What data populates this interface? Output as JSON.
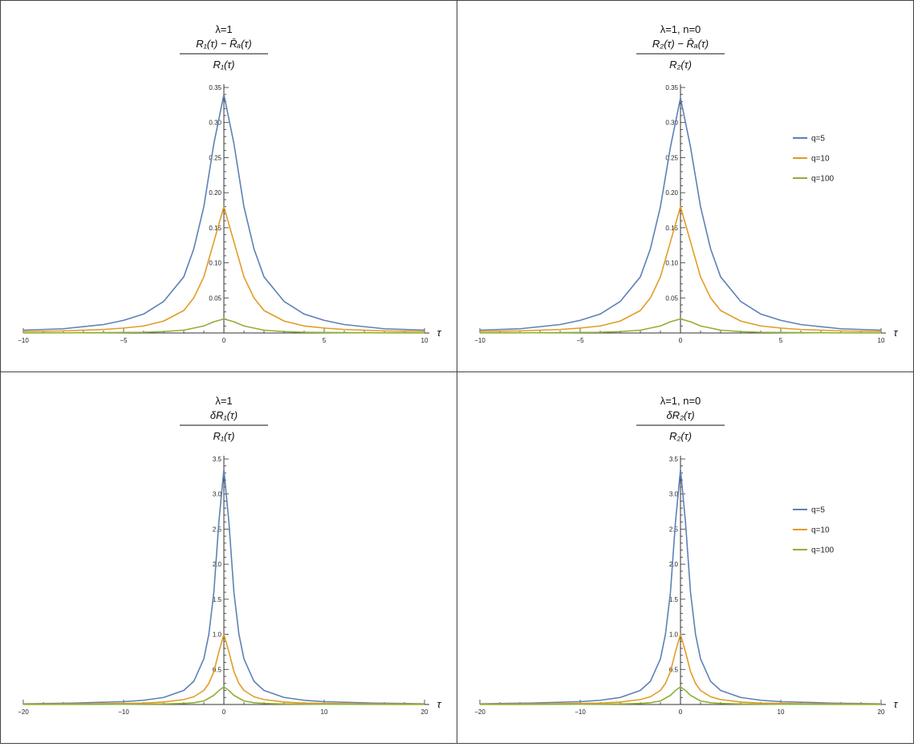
{
  "colors": {
    "q5": "#5E81B5",
    "q10": "#E19C24",
    "q100": "#8FB032",
    "frame": "#444444",
    "axis": "#333333"
  },
  "legend": [
    "q=5",
    "q=10",
    "q=100"
  ],
  "chart_data": [
    {
      "type": "line",
      "title_line1": "λ=1",
      "numerator": "R₁(τ) − R̄ₐ(τ)",
      "denominator": "R₁(τ)",
      "xlabel": "τ",
      "xlim": [
        -10,
        10
      ],
      "ylim": [
        0,
        0.35
      ],
      "xticks": [
        "-10",
        "-5",
        "0",
        "5",
        "10"
      ],
      "yticks": [
        "0.05",
        "0.10",
        "0.15",
        "0.20",
        "0.25",
        "0.30",
        "0.35"
      ],
      "series": [
        {
          "name": "q=5",
          "x": [
            -10,
            -8,
            -6,
            -5,
            -4,
            -3,
            -2,
            -1.5,
            -1,
            -0.5,
            0,
            0.5,
            1,
            1.5,
            2,
            3,
            4,
            5,
            6,
            8,
            10
          ],
          "values": [
            0.004,
            0.006,
            0.012,
            0.018,
            0.027,
            0.045,
            0.08,
            0.12,
            0.18,
            0.27,
            0.34,
            0.27,
            0.18,
            0.12,
            0.08,
            0.045,
            0.027,
            0.018,
            0.012,
            0.006,
            0.004
          ]
        },
        {
          "name": "q=10",
          "x": [
            -10,
            -8,
            -6,
            -5,
            -4,
            -3,
            -2,
            -1.5,
            -1,
            -0.5,
            0,
            0.5,
            1,
            1.5,
            2,
            3,
            4,
            5,
            6,
            8,
            10
          ],
          "values": [
            0.002,
            0.003,
            0.005,
            0.007,
            0.01,
            0.017,
            0.032,
            0.05,
            0.08,
            0.13,
            0.18,
            0.13,
            0.08,
            0.05,
            0.032,
            0.017,
            0.01,
            0.007,
            0.005,
            0.003,
            0.002
          ]
        },
        {
          "name": "q=100",
          "x": [
            -10,
            -6,
            -4,
            -3,
            -2,
            -1,
            -0.5,
            0,
            0.5,
            1,
            2,
            3,
            4,
            6,
            10
          ],
          "values": [
            0.0,
            0.0005,
            0.001,
            0.002,
            0.004,
            0.01,
            0.016,
            0.02,
            0.016,
            0.01,
            0.004,
            0.002,
            0.001,
            0.0005,
            0.0
          ]
        }
      ]
    },
    {
      "type": "line",
      "title_line1": "λ=1, n=0",
      "numerator": "R₂(τ) − R̄ₐ(τ)",
      "denominator": "R₂(τ)",
      "xlabel": "τ",
      "xlim": [
        -10,
        10
      ],
      "ylim": [
        0,
        0.35
      ],
      "xticks": [
        "-10",
        "-5",
        "0",
        "5",
        "10"
      ],
      "yticks": [
        "0.05",
        "0.10",
        "0.15",
        "0.20",
        "0.25",
        "0.30",
        "0.35"
      ],
      "legend": "right",
      "series": [
        {
          "name": "q=5",
          "x": [
            -10,
            -8,
            -6,
            -5,
            -4,
            -3,
            -2,
            -1.5,
            -1,
            -0.5,
            0,
            0.5,
            1,
            1.5,
            2,
            3,
            4,
            5,
            6,
            8,
            10
          ],
          "values": [
            0.004,
            0.006,
            0.012,
            0.018,
            0.027,
            0.045,
            0.08,
            0.12,
            0.18,
            0.265,
            0.335,
            0.265,
            0.18,
            0.12,
            0.08,
            0.045,
            0.027,
            0.018,
            0.012,
            0.006,
            0.004
          ]
        },
        {
          "name": "q=10",
          "x": [
            -10,
            -8,
            -6,
            -5,
            -4,
            -3,
            -2,
            -1.5,
            -1,
            -0.5,
            0,
            0.5,
            1,
            1.5,
            2,
            3,
            4,
            5,
            6,
            8,
            10
          ],
          "values": [
            0.002,
            0.003,
            0.005,
            0.007,
            0.01,
            0.017,
            0.032,
            0.05,
            0.08,
            0.13,
            0.18,
            0.13,
            0.08,
            0.05,
            0.032,
            0.017,
            0.01,
            0.007,
            0.005,
            0.003,
            0.002
          ]
        },
        {
          "name": "q=100",
          "x": [
            -10,
            -6,
            -4,
            -3,
            -2,
            -1,
            -0.5,
            0,
            0.5,
            1,
            2,
            3,
            4,
            6,
            10
          ],
          "values": [
            0.0,
            0.0005,
            0.001,
            0.002,
            0.004,
            0.01,
            0.016,
            0.02,
            0.016,
            0.01,
            0.004,
            0.002,
            0.001,
            0.0005,
            0.0
          ]
        }
      ]
    },
    {
      "type": "line",
      "title_line1": "λ=1",
      "numerator": "δR₁(τ)",
      "denominator": "R₁(τ)",
      "xlabel": "τ",
      "xlim": [
        -20,
        20
      ],
      "ylim": [
        0,
        3.5
      ],
      "xticks": [
        "-20",
        "-10",
        "0",
        "10",
        "20"
      ],
      "yticks": [
        "0.5",
        "1.0",
        "1.5",
        "2.0",
        "2.5",
        "3.0",
        "3.5"
      ],
      "series": [
        {
          "name": "q=5",
          "x": [
            -20,
            -15,
            -10,
            -8,
            -6,
            -4,
            -3,
            -2,
            -1.5,
            -1,
            -0.5,
            0,
            0.5,
            1,
            1.5,
            2,
            3,
            4,
            6,
            8,
            10,
            15,
            20
          ],
          "values": [
            0.01,
            0.02,
            0.04,
            0.06,
            0.1,
            0.2,
            0.33,
            0.65,
            1.0,
            1.6,
            2.6,
            3.35,
            2.6,
            1.6,
            1.0,
            0.65,
            0.33,
            0.2,
            0.1,
            0.06,
            0.04,
            0.02,
            0.01
          ]
        },
        {
          "name": "q=10",
          "x": [
            -20,
            -15,
            -10,
            -8,
            -6,
            -4,
            -3,
            -2,
            -1.5,
            -1,
            -0.5,
            0,
            0.5,
            1,
            1.5,
            2,
            3,
            4,
            6,
            8,
            10,
            15,
            20
          ],
          "values": [
            0.005,
            0.008,
            0.015,
            0.02,
            0.035,
            0.07,
            0.11,
            0.2,
            0.3,
            0.47,
            0.75,
            1.0,
            0.75,
            0.47,
            0.3,
            0.2,
            0.11,
            0.07,
            0.035,
            0.02,
            0.015,
            0.008,
            0.005
          ]
        },
        {
          "name": "q=100",
          "x": [
            -20,
            -10,
            -6,
            -4,
            -3,
            -2,
            -1,
            -0.5,
            0,
            0.5,
            1,
            2,
            3,
            4,
            6,
            10,
            20
          ],
          "values": [
            0.0,
            0.003,
            0.008,
            0.015,
            0.025,
            0.05,
            0.13,
            0.2,
            0.25,
            0.2,
            0.13,
            0.05,
            0.025,
            0.015,
            0.008,
            0.003,
            0.0
          ]
        }
      ]
    },
    {
      "type": "line",
      "title_line1": "λ=1, n=0",
      "numerator": "δR₂(τ)",
      "denominator": "R₂(τ)",
      "xlabel": "τ",
      "xlim": [
        -20,
        20
      ],
      "ylim": [
        0,
        3.5
      ],
      "xticks": [
        "-20",
        "-10",
        "0",
        "10",
        "20"
      ],
      "yticks": [
        "0.5",
        "1.0",
        "1.5",
        "2.0",
        "2.5",
        "3.0",
        "3.5"
      ],
      "legend": "right",
      "series": [
        {
          "name": "q=5",
          "x": [
            -20,
            -15,
            -10,
            -8,
            -6,
            -4,
            -3,
            -2,
            -1.5,
            -1,
            -0.5,
            0,
            0.5,
            1,
            1.5,
            2,
            3,
            4,
            6,
            8,
            10,
            15,
            20
          ],
          "values": [
            0.01,
            0.02,
            0.04,
            0.06,
            0.1,
            0.2,
            0.33,
            0.65,
            1.0,
            1.6,
            2.6,
            3.35,
            2.6,
            1.6,
            1.0,
            0.65,
            0.33,
            0.2,
            0.1,
            0.06,
            0.04,
            0.02,
            0.01
          ]
        },
        {
          "name": "q=10",
          "x": [
            -20,
            -15,
            -10,
            -8,
            -6,
            -4,
            -3,
            -2,
            -1.5,
            -1,
            -0.5,
            0,
            0.5,
            1,
            1.5,
            2,
            3,
            4,
            6,
            8,
            10,
            15,
            20
          ],
          "values": [
            0.005,
            0.008,
            0.015,
            0.02,
            0.035,
            0.07,
            0.11,
            0.2,
            0.3,
            0.47,
            0.75,
            1.0,
            0.75,
            0.47,
            0.3,
            0.2,
            0.11,
            0.07,
            0.035,
            0.02,
            0.015,
            0.008,
            0.005
          ]
        },
        {
          "name": "q=100",
          "x": [
            -20,
            -10,
            -6,
            -4,
            -3,
            -2,
            -1,
            -0.5,
            0,
            0.5,
            1,
            2,
            3,
            4,
            6,
            10,
            20
          ],
          "values": [
            0.0,
            0.003,
            0.008,
            0.015,
            0.025,
            0.05,
            0.13,
            0.2,
            0.25,
            0.2,
            0.13,
            0.05,
            0.025,
            0.015,
            0.008,
            0.003,
            0.0
          ]
        }
      ]
    }
  ]
}
